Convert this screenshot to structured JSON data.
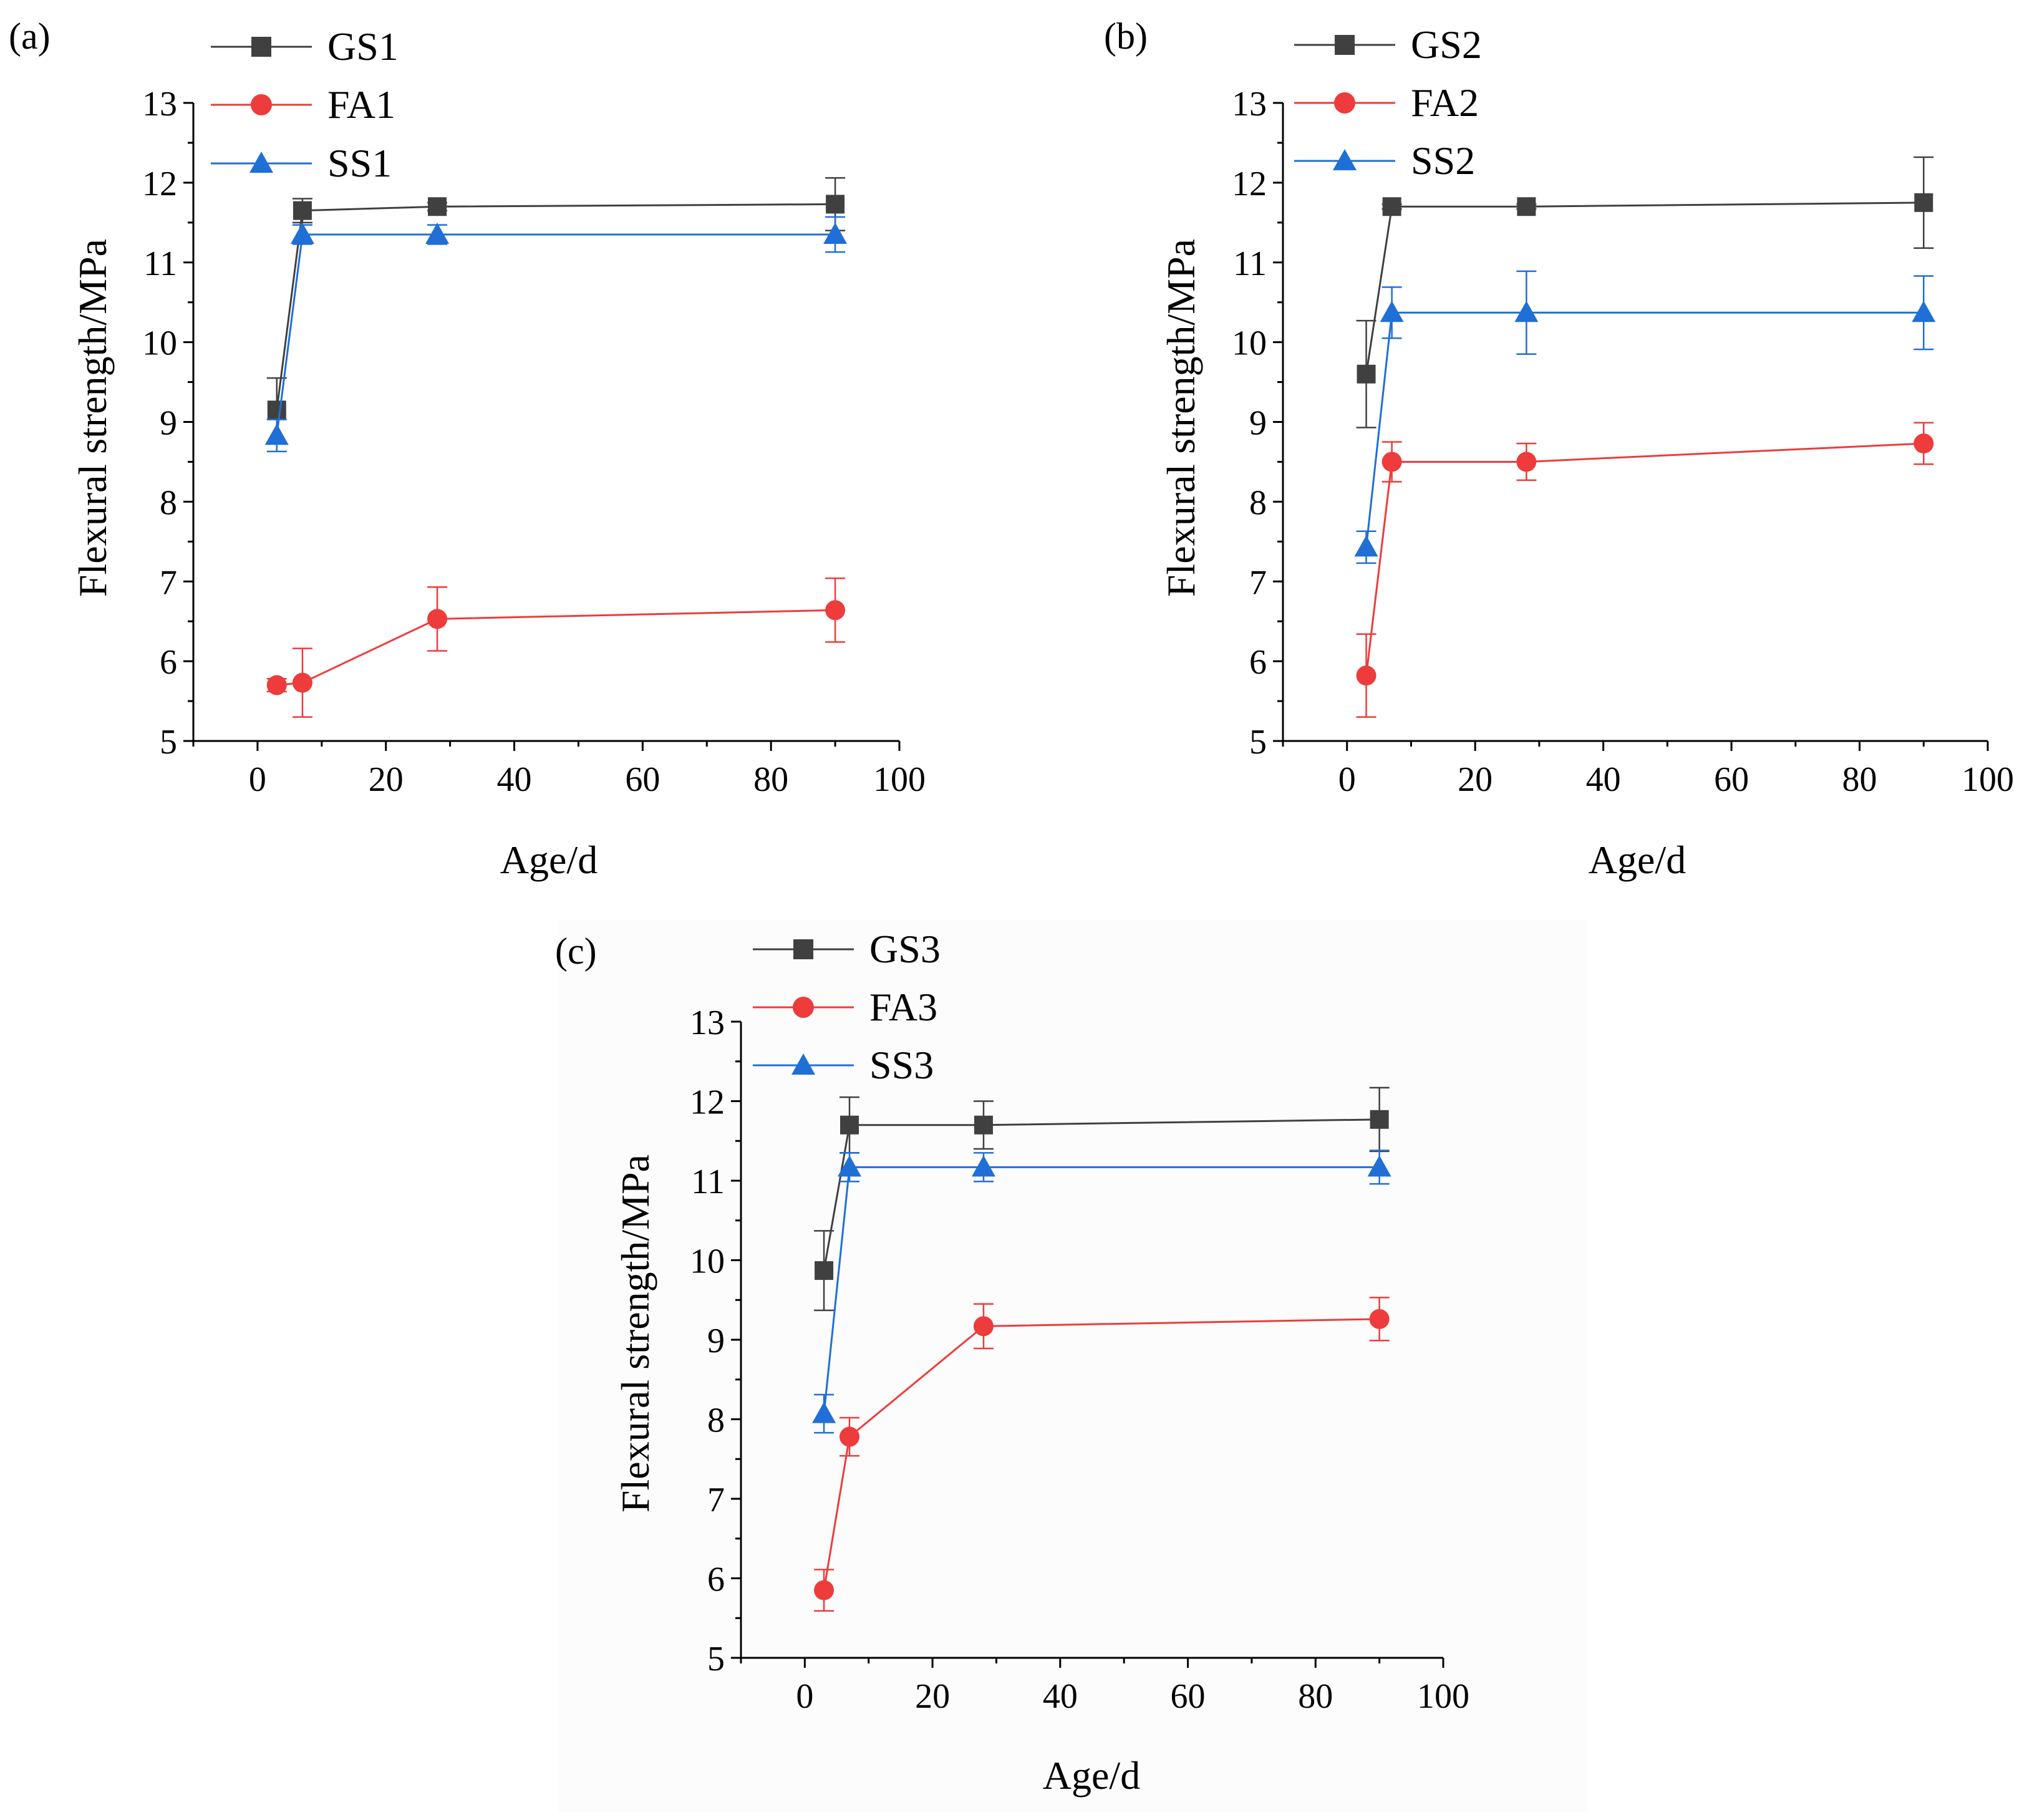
{
  "chart_data": [
    {
      "type": "line",
      "panel": "(a)",
      "xlabel": "Age/d",
      "ylabel": "Flexural strength/MPa",
      "xlim": [
        -10,
        100
      ],
      "ylim": [
        5,
        13
      ],
      "xticks": [
        0,
        20,
        40,
        60,
        80,
        100
      ],
      "yticks": [
        5,
        6,
        7,
        8,
        9,
        10,
        11,
        12,
        13
      ],
      "x": [
        3,
        7,
        28,
        90
      ],
      "legend_position": "top-left",
      "series": [
        {
          "name": "GS1",
          "color": "#404040",
          "marker": "square",
          "values": [
            9.15,
            11.65,
            11.7,
            11.73
          ],
          "errors": [
            0.4,
            0.15,
            0.05,
            0.33
          ]
        },
        {
          "name": "FA1",
          "color": "#ee3b3b",
          "marker": "circle",
          "values": [
            5.7,
            5.73,
            6.53,
            6.64
          ],
          "errors": [
            0.08,
            0.43,
            0.4,
            0.4
          ]
        },
        {
          "name": "SS1",
          "color": "#1f6fd6",
          "marker": "triangle",
          "values": [
            8.83,
            11.35,
            11.35,
            11.35
          ],
          "errors": [
            0.2,
            0.12,
            0.12,
            0.22
          ]
        }
      ]
    },
    {
      "type": "line",
      "panel": "(b)",
      "xlabel": "Age/d",
      "ylabel": "Flexural strength/MPa",
      "xlim": [
        -10,
        100
      ],
      "ylim": [
        5,
        13
      ],
      "xticks": [
        0,
        20,
        40,
        60,
        80,
        100
      ],
      "yticks": [
        5,
        6,
        7,
        8,
        9,
        10,
        11,
        12,
        13
      ],
      "x": [
        3,
        7,
        28,
        90
      ],
      "legend_position": "top-left",
      "series": [
        {
          "name": "GS2",
          "color": "#404040",
          "marker": "square",
          "values": [
            9.6,
            11.7,
            11.7,
            11.75
          ],
          "errors": [
            0.67,
            0.03,
            0.03,
            0.57
          ]
        },
        {
          "name": "FA2",
          "color": "#ee3b3b",
          "marker": "circle",
          "values": [
            5.82,
            8.5,
            8.5,
            8.73
          ],
          "errors": [
            0.52,
            0.25,
            0.23,
            0.26
          ]
        },
        {
          "name": "SS2",
          "color": "#1f6fd6",
          "marker": "triangle",
          "values": [
            7.43,
            10.37,
            10.37,
            10.37
          ],
          "errors": [
            0.2,
            0.32,
            0.52,
            0.46
          ]
        }
      ]
    },
    {
      "type": "line",
      "panel": "(c)",
      "xlabel": "Age/d",
      "ylabel": "Flexural strength/MPa",
      "xlim": [
        -10,
        100
      ],
      "ylim": [
        5,
        13
      ],
      "xticks": [
        0,
        20,
        40,
        60,
        80,
        100
      ],
      "yticks": [
        5,
        6,
        7,
        8,
        9,
        10,
        11,
        12,
        13
      ],
      "x": [
        3,
        7,
        28,
        90
      ],
      "legend_position": "top-left",
      "series": [
        {
          "name": "GS3",
          "color": "#404040",
          "marker": "square",
          "values": [
            9.87,
            11.7,
            11.7,
            11.77
          ],
          "errors": [
            0.5,
            0.35,
            0.3,
            0.4
          ]
        },
        {
          "name": "FA3",
          "color": "#ee3b3b",
          "marker": "circle",
          "values": [
            5.85,
            7.78,
            9.17,
            9.26
          ],
          "errors": [
            0.26,
            0.24,
            0.28,
            0.27
          ]
        },
        {
          "name": "SS3",
          "color": "#1f6fd6",
          "marker": "triangle",
          "values": [
            8.07,
            11.17,
            11.17,
            11.17
          ],
          "errors": [
            0.24,
            0.18,
            0.18,
            0.21
          ]
        }
      ]
    }
  ]
}
